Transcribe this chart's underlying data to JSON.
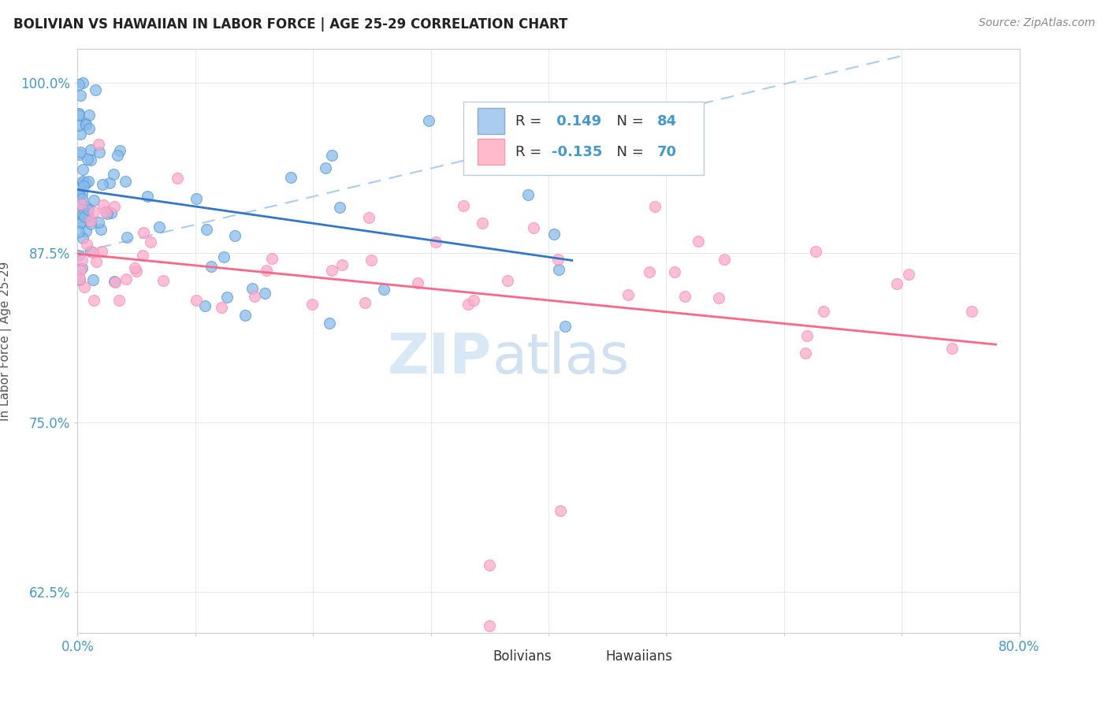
{
  "title": "BOLIVIAN VS HAWAIIAN IN LABOR FORCE | AGE 25-29 CORRELATION CHART",
  "source_text": "Source: ZipAtlas.com",
  "ylabel": "In Labor Force | Age 25-29",
  "xlim": [
    0.0,
    0.8
  ],
  "ylim": [
    0.595,
    1.025
  ],
  "xtick_positions": [
    0.0,
    0.1,
    0.2,
    0.3,
    0.4,
    0.5,
    0.6,
    0.7,
    0.8
  ],
  "xticklabels": [
    "0.0%",
    "",
    "",
    "",
    "",
    "",
    "",
    "",
    "80.0%"
  ],
  "ytick_positions": [
    0.625,
    0.75,
    0.875,
    1.0
  ],
  "yticklabels": [
    "62.5%",
    "75.0%",
    "87.5%",
    "100.0%"
  ],
  "R_bolivian": 0.149,
  "N_bolivian": 84,
  "R_hawaiian": -0.135,
  "N_hawaiian": 70,
  "blue_dot_color": "#88BBEE",
  "blue_dot_edge": "#5599CC",
  "pink_dot_color": "#FFAACC",
  "pink_dot_edge": "#FF88AA",
  "blue_line_color": "#3377CC",
  "pink_line_color": "#FF6688",
  "dashed_line_color": "#AACCEE",
  "tick_color": "#4499CC",
  "watermark_color": "#D8E8F4",
  "legend_border_color": "#BBCCDD"
}
